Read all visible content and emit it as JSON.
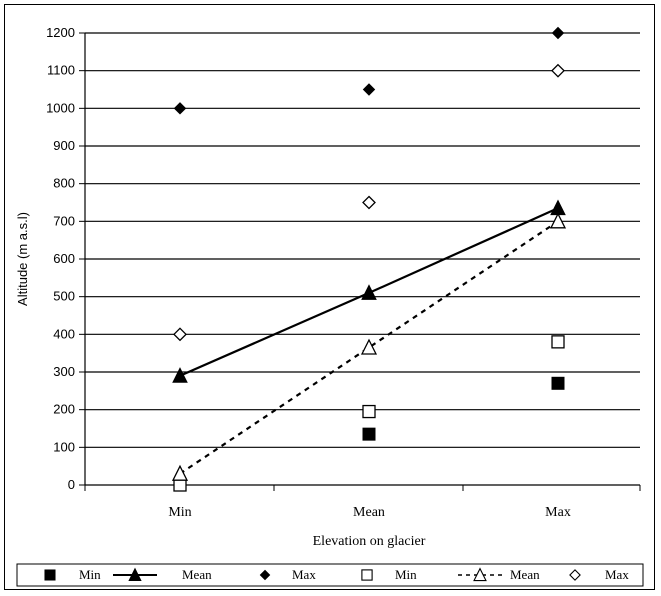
{
  "chart_data": {
    "type": "line",
    "title": "",
    "xlabel": "Elevation on glacier",
    "ylabel": "Altitude (m a.s.l)",
    "categories": [
      "Min",
      "Mean",
      "Max"
    ],
    "ylim": [
      0,
      1200
    ],
    "yticks": [
      0,
      100,
      200,
      300,
      400,
      500,
      600,
      700,
      800,
      900,
      1000,
      1100,
      1200
    ],
    "grid": "horizontal",
    "legend_position": "bottom",
    "series": [
      {
        "name": "Min",
        "style": "filled-square",
        "line": "none",
        "values": [
          null,
          135,
          270
        ]
      },
      {
        "name": "Mean",
        "style": "filled-triangle",
        "line": "solid",
        "values": [
          290,
          510,
          735
        ]
      },
      {
        "name": "Max",
        "style": "filled-diamond",
        "line": "none",
        "values": [
          1000,
          1050,
          1200
        ]
      },
      {
        "name": "Min",
        "style": "open-square",
        "line": "none",
        "values": [
          0,
          195,
          380
        ]
      },
      {
        "name": "Mean",
        "style": "open-triangle",
        "line": "dashed",
        "values": [
          30,
          365,
          700
        ]
      },
      {
        "name": "Max",
        "style": "open-diamond",
        "line": "none",
        "values": [
          400,
          750,
          1100
        ]
      }
    ]
  }
}
